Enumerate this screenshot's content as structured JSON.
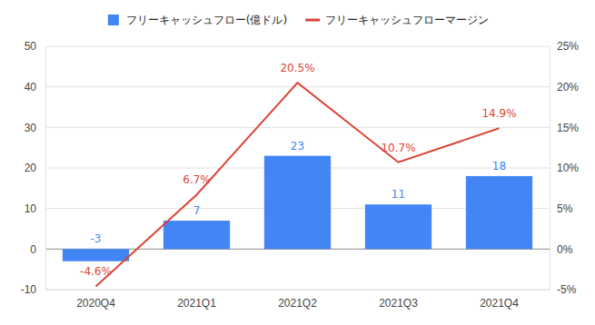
{
  "chart_data": {
    "type": "bar",
    "categories": [
      "2020Q4",
      "2021Q1",
      "2021Q2",
      "2021Q3",
      "2021Q4"
    ],
    "series": [
      {
        "name": "フリーキャッシュフロー(億ドル)",
        "type": "bar",
        "color": "#4285f4",
        "values": [
          -3,
          7,
          23,
          11,
          18
        ]
      },
      {
        "name": "フリーキャッシュフローマージン",
        "type": "line",
        "color": "#db4437",
        "axis": "y2",
        "values": [
          -4.6,
          6.7,
          20.5,
          10.7,
          14.9
        ],
        "value_labels": [
          "-4.6%",
          "6.7%",
          "20.5%",
          "10.7%",
          "14.9%"
        ]
      }
    ],
    "ylim": [
      -10,
      50
    ],
    "yticks": [
      -10,
      0,
      10,
      20,
      30,
      40,
      50
    ],
    "y2lim": [
      -5,
      25
    ],
    "y2ticks": [
      {
        "value": -5,
        "label": "-5%"
      },
      {
        "value": 0,
        "label": "0%"
      },
      {
        "value": 5,
        "label": "5%"
      },
      {
        "value": 10,
        "label": "10%"
      },
      {
        "value": 15,
        "label": "15%"
      },
      {
        "value": 20,
        "label": "20%"
      },
      {
        "value": 25,
        "label": "25%"
      }
    ],
    "grid": true,
    "legend": "top",
    "data_labels": true
  }
}
